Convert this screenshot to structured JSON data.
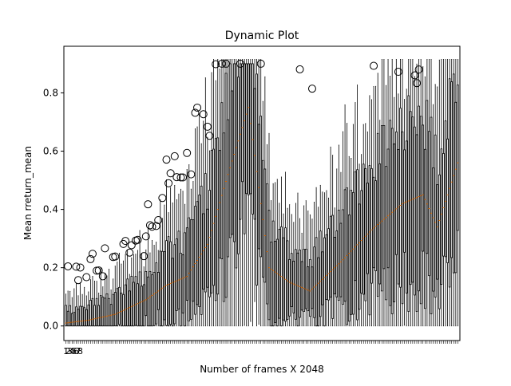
{
  "chart_data": {
    "type": "box",
    "title": "Dynamic Plot",
    "xlabel": "Number of frames X 2048",
    "ylabel": "Mean rreturn_mean",
    "ylim": [
      -0.05,
      0.96
    ],
    "yticks": [
      0.0,
      0.2,
      0.4,
      0.6,
      0.8
    ],
    "ytick_labels": [
      "0.0",
      "0.2",
      "0.4",
      "0.6",
      "0.8"
    ],
    "grid": false,
    "legend": "none",
    "box_count": 192,
    "xtick_labels_visible": [
      "1",
      "2",
      "3",
      "4",
      "5",
      "6",
      "7",
      "8"
    ],
    "median_profile": {
      "box_index": [
        1,
        12,
        25,
        40,
        50,
        60,
        70,
        80,
        90,
        100,
        110,
        120,
        135,
        150,
        165,
        175,
        182,
        192
      ],
      "median": [
        0.01,
        0.02,
        0.04,
        0.09,
        0.14,
        0.17,
        0.28,
        0.52,
        0.75,
        0.2,
        0.15,
        0.12,
        0.22,
        0.33,
        0.42,
        0.45,
        0.34,
        0.56
      ]
    },
    "colors": {
      "box": "#000000",
      "median": "#ff7f0e",
      "flier": "#000000"
    }
  }
}
